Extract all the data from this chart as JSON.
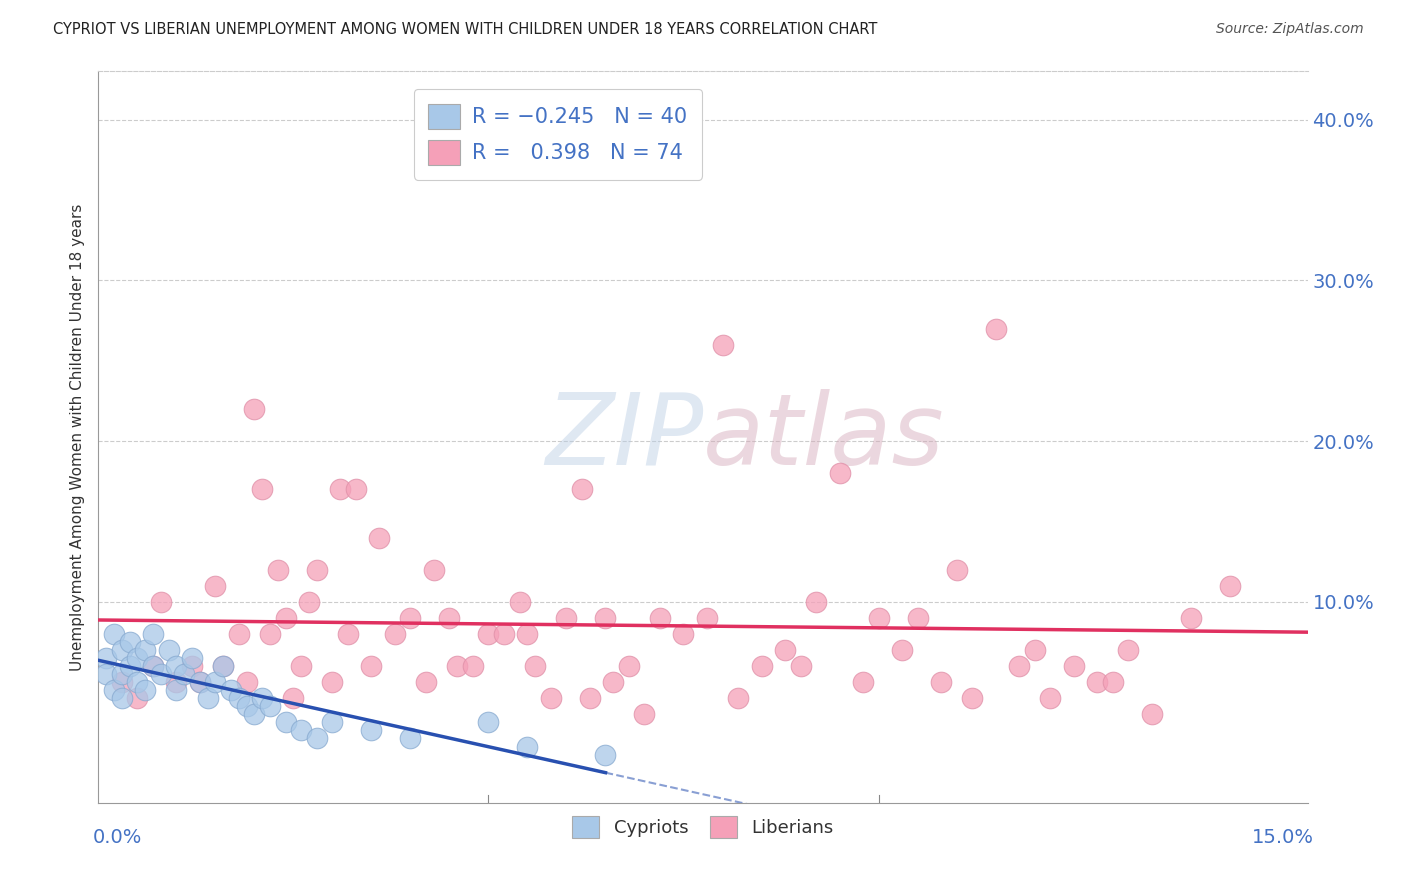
{
  "title": "CYPRIOT VS LIBERIAN UNEMPLOYMENT AMONG WOMEN WITH CHILDREN UNDER 18 YEARS CORRELATION CHART",
  "source": "Source: ZipAtlas.com",
  "ylabel": "Unemployment Among Women with Children Under 18 years",
  "ytick_labels": [
    "40.0%",
    "30.0%",
    "20.0%",
    "10.0%"
  ],
  "ytick_values": [
    0.4,
    0.3,
    0.2,
    0.1
  ],
  "xlim": [
    0.0,
    0.155
  ],
  "ylim": [
    -0.025,
    0.43
  ],
  "cypriot_color": "#a8c8e8",
  "liberian_color": "#f5a0b8",
  "cypriot_line_color": "#2850b0",
  "liberian_line_color": "#e03060",
  "R_cypriot": -0.245,
  "N_cypriot": 40,
  "R_liberian": 0.398,
  "N_liberian": 74,
  "cypriot_scatter_x": [
    0.001,
    0.001,
    0.002,
    0.002,
    0.003,
    0.003,
    0.003,
    0.004,
    0.004,
    0.005,
    0.005,
    0.006,
    0.006,
    0.007,
    0.007,
    0.008,
    0.009,
    0.01,
    0.01,
    0.011,
    0.012,
    0.013,
    0.014,
    0.015,
    0.016,
    0.017,
    0.018,
    0.019,
    0.02,
    0.021,
    0.022,
    0.024,
    0.026,
    0.028,
    0.03,
    0.035,
    0.04,
    0.05,
    0.055,
    0.065
  ],
  "cypriot_scatter_y": [
    0.065,
    0.055,
    0.08,
    0.045,
    0.07,
    0.055,
    0.04,
    0.06,
    0.075,
    0.065,
    0.05,
    0.07,
    0.045,
    0.06,
    0.08,
    0.055,
    0.07,
    0.06,
    0.045,
    0.055,
    0.065,
    0.05,
    0.04,
    0.05,
    0.06,
    0.045,
    0.04,
    0.035,
    0.03,
    0.04,
    0.035,
    0.025,
    0.02,
    0.015,
    0.025,
    0.02,
    0.015,
    0.025,
    0.01,
    0.005
  ],
  "liberian_scatter_x": [
    0.003,
    0.005,
    0.007,
    0.008,
    0.01,
    0.012,
    0.013,
    0.015,
    0.016,
    0.018,
    0.019,
    0.02,
    0.021,
    0.022,
    0.023,
    0.024,
    0.025,
    0.026,
    0.027,
    0.028,
    0.03,
    0.031,
    0.032,
    0.033,
    0.035,
    0.036,
    0.038,
    0.04,
    0.042,
    0.043,
    0.045,
    0.046,
    0.048,
    0.05,
    0.052,
    0.054,
    0.055,
    0.056,
    0.058,
    0.06,
    0.062,
    0.063,
    0.065,
    0.066,
    0.068,
    0.07,
    0.072,
    0.075,
    0.078,
    0.08,
    0.082,
    0.085,
    0.088,
    0.09,
    0.092,
    0.095,
    0.098,
    0.1,
    0.103,
    0.105,
    0.108,
    0.11,
    0.112,
    0.115,
    0.118,
    0.12,
    0.122,
    0.125,
    0.128,
    0.13,
    0.132,
    0.135,
    0.14,
    0.145
  ],
  "liberian_scatter_y": [
    0.05,
    0.04,
    0.06,
    0.1,
    0.05,
    0.06,
    0.05,
    0.11,
    0.06,
    0.08,
    0.05,
    0.22,
    0.17,
    0.08,
    0.12,
    0.09,
    0.04,
    0.06,
    0.1,
    0.12,
    0.05,
    0.17,
    0.08,
    0.17,
    0.06,
    0.14,
    0.08,
    0.09,
    0.05,
    0.12,
    0.09,
    0.06,
    0.06,
    0.08,
    0.08,
    0.1,
    0.08,
    0.06,
    0.04,
    0.09,
    0.17,
    0.04,
    0.09,
    0.05,
    0.06,
    0.03,
    0.09,
    0.08,
    0.09,
    0.26,
    0.04,
    0.06,
    0.07,
    0.06,
    0.1,
    0.18,
    0.05,
    0.09,
    0.07,
    0.09,
    0.05,
    0.12,
    0.04,
    0.27,
    0.06,
    0.07,
    0.04,
    0.06,
    0.05,
    0.05,
    0.07,
    0.03,
    0.09,
    0.11
  ]
}
